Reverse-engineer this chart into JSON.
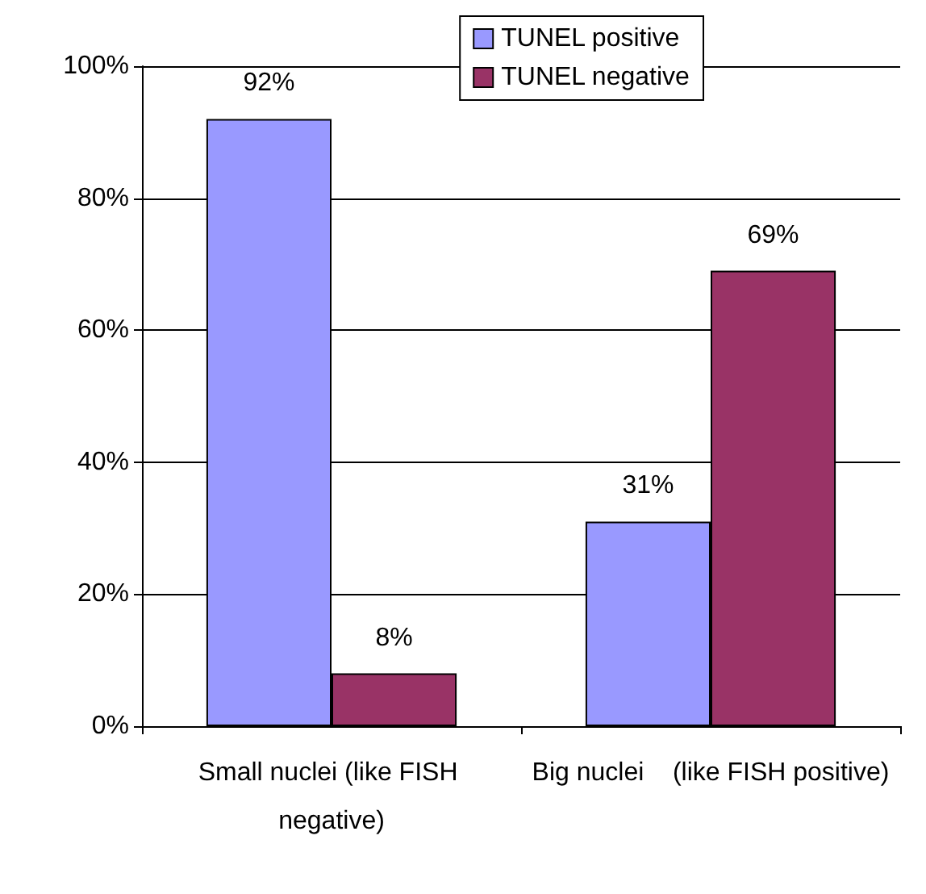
{
  "chart_data": {
    "type": "bar",
    "categories": [
      "Small nuclei (like FISH negative)",
      "Big nuclei    (like FISH positive)"
    ],
    "series": [
      {
        "name": "TUNEL positive",
        "color": "#9999ff",
        "values": [
          92,
          31
        ],
        "value_labels": [
          "92%",
          "31%"
        ]
      },
      {
        "name": "TUNEL negative",
        "color": "#993366",
        "values": [
          8,
          69
        ],
        "value_labels": [
          "8%",
          "69%"
        ]
      }
    ],
    "ylim": [
      0,
      100
    ],
    "yticks": [
      {
        "value": 0,
        "label": "0%"
      },
      {
        "value": 20,
        "label": "20%"
      },
      {
        "value": 40,
        "label": "40%"
      },
      {
        "value": 60,
        "label": "60%"
      },
      {
        "value": 80,
        "label": "80%"
      },
      {
        "value": 100,
        "label": "100%"
      }
    ],
    "grid": "y",
    "legend": "top right"
  }
}
